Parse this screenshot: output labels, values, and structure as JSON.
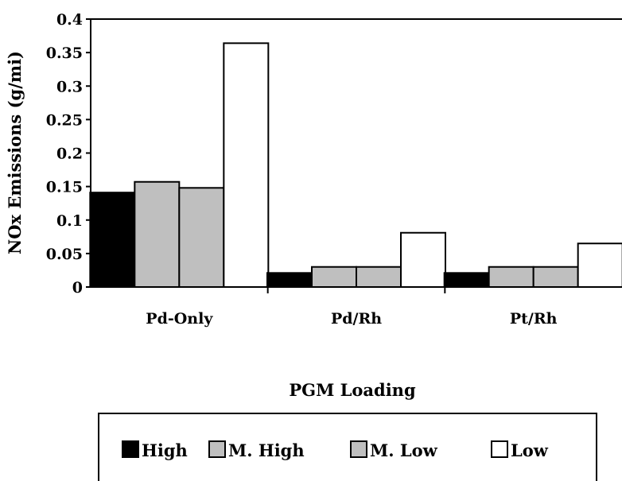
{
  "chart_data": {
    "type": "bar",
    "xlabel": "PGM Loading",
    "ylabel": "NOx Emissions (g/mi)",
    "ylim": [
      0,
      0.4
    ],
    "yticks": [
      "0.4",
      "0.35",
      "0.3",
      "0.25",
      "0.2",
      "0.15",
      "0.1",
      "0.05",
      "0"
    ],
    "categories": [
      "Pd-Only",
      "Pd/Rh",
      "Pt/Rh"
    ],
    "series": [
      {
        "name": "High",
        "color": "#000000",
        "values": [
          0.141,
          0.021,
          0.021
        ]
      },
      {
        "name": "M. High",
        "color": "#bfbfbf",
        "values": [
          0.157,
          0.03,
          0.03
        ]
      },
      {
        "name": "M. Low",
        "color": "#bfbfbf",
        "values": [
          0.148,
          0.03,
          0.03
        ]
      },
      {
        "name": "Low",
        "color": "#ffffff",
        "values": [
          0.364,
          0.081,
          0.065
        ]
      }
    ],
    "legend_position": "bottom",
    "grid": false
  }
}
